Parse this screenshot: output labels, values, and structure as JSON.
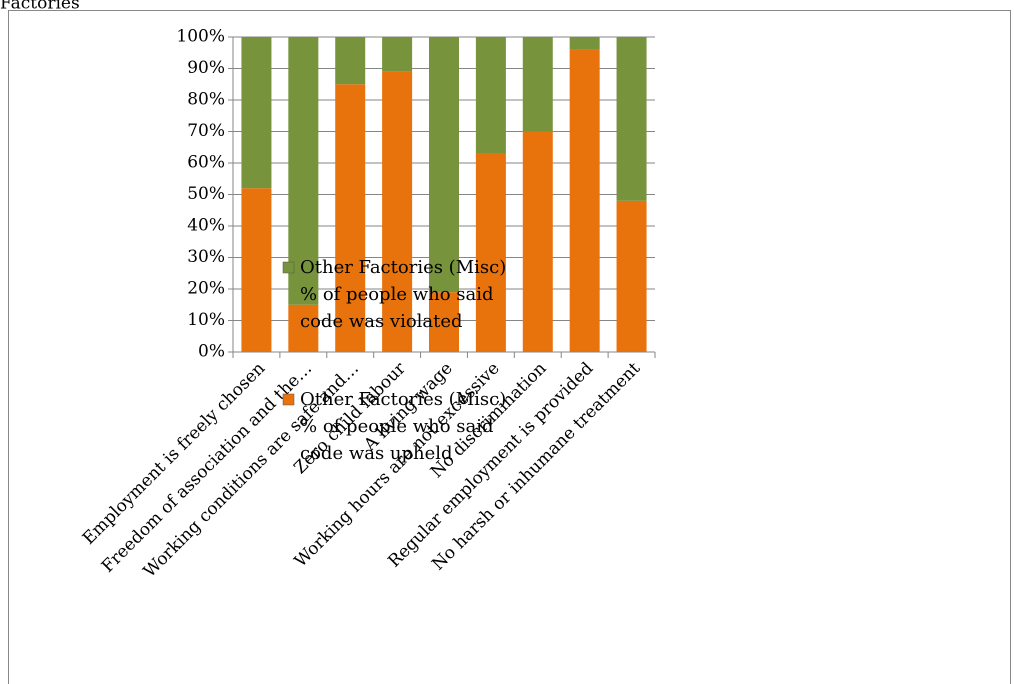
{
  "chart_data": {
    "type": "stacked_bar",
    "title": "Factories",
    "categories": [
      "Employment is freely chosen",
      "Freedom of association and the…",
      "Working conditions are safe and…",
      "Zero child labour",
      "A living wage",
      "Working hours are not excessive",
      "No discrimination",
      "Regular employment is provided",
      "No harsh or inhumane treatment"
    ],
    "series": [
      {
        "name": "Other Factories (Misc) % of people who said code was upheld",
        "color": "#e8720c",
        "values": [
          52,
          15,
          85,
          89,
          19,
          63,
          70,
          96,
          48
        ]
      },
      {
        "name": "Other Factories (Misc) % of people who said code was violated",
        "color": "#77933c",
        "values": [
          48,
          85,
          15,
          11,
          81,
          37,
          30,
          4,
          52
        ]
      }
    ],
    "ylim": [
      0,
      100
    ],
    "yticks": [
      {
        "value": 0,
        "label": "0%"
      },
      {
        "value": 10,
        "label": "10%"
      },
      {
        "value": 20,
        "label": "20%"
      },
      {
        "value": 30,
        "label": "30%"
      },
      {
        "value": 40,
        "label": "40%"
      },
      {
        "value": 50,
        "label": "50%"
      },
      {
        "value": 60,
        "label": "60%"
      },
      {
        "value": 70,
        "label": "70%"
      },
      {
        "value": 80,
        "label": "80%"
      },
      {
        "value": 90,
        "label": "90%"
      },
      {
        "value": 100,
        "label": "100%"
      }
    ],
    "grid": true
  }
}
